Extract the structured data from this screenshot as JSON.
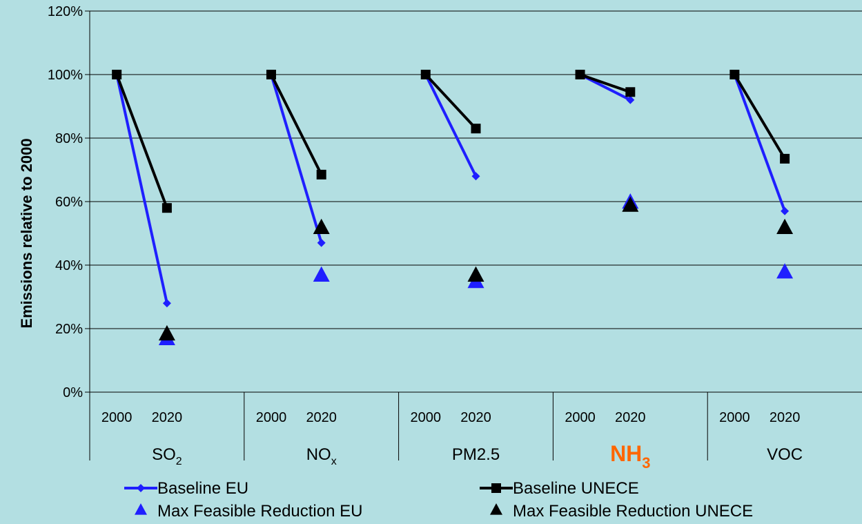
{
  "chart_data": {
    "type": "line",
    "ylabel": "Emissions relative to 2000",
    "ylim": [
      0,
      120
    ],
    "yticks": [
      0,
      20,
      40,
      60,
      80,
      100,
      120
    ],
    "ytick_labels": [
      "0%",
      "20%",
      "40%",
      "60%",
      "80%",
      "100%",
      "120%"
    ],
    "grid": true,
    "groups": [
      {
        "label": "SO",
        "sub": "2",
        "highlight": false,
        "years": [
          "2000",
          "2020"
        ]
      },
      {
        "label": "NO",
        "sub": "x",
        "highlight": false,
        "years": [
          "2000",
          "2020"
        ]
      },
      {
        "label": "PM2.5",
        "sub": "",
        "highlight": false,
        "years": [
          "2000",
          "2020"
        ]
      },
      {
        "label": "NH",
        "sub": "3",
        "highlight": true,
        "years": [
          "2000",
          "2020"
        ]
      },
      {
        "label": "VOC",
        "sub": "",
        "highlight": false,
        "years": [
          "2000",
          "2020"
        ]
      }
    ],
    "series": [
      {
        "name": "Baseline EU",
        "color": "#1f1fff",
        "marker": "diamond",
        "connected": true,
        "values": [
          [
            100,
            28
          ],
          [
            100,
            47
          ],
          [
            100,
            68
          ],
          [
            100,
            92
          ],
          [
            100,
            57
          ]
        ]
      },
      {
        "name": "Baseline UNECE",
        "color": "#000000",
        "marker": "square",
        "connected": true,
        "values": [
          [
            100,
            58
          ],
          [
            100,
            68.5
          ],
          [
            100,
            83
          ],
          [
            100,
            94.5
          ],
          [
            100,
            73.5
          ]
        ]
      },
      {
        "name": "Max Feasible Reduction EU",
        "color": "#1f1fff",
        "marker": "triangle",
        "connected": false,
        "values": [
          [
            null,
            17
          ],
          [
            null,
            37
          ],
          [
            null,
            35
          ],
          [
            null,
            60
          ],
          [
            null,
            38
          ]
        ]
      },
      {
        "name": "Max Feasible Reduction UNECE",
        "color": "#000000",
        "marker": "triangle",
        "connected": false,
        "values": [
          [
            null,
            18.5
          ],
          [
            null,
            52
          ],
          [
            null,
            37
          ],
          [
            null,
            59
          ],
          [
            null,
            52
          ]
        ]
      }
    ],
    "highlight_color": "#ff6600"
  }
}
